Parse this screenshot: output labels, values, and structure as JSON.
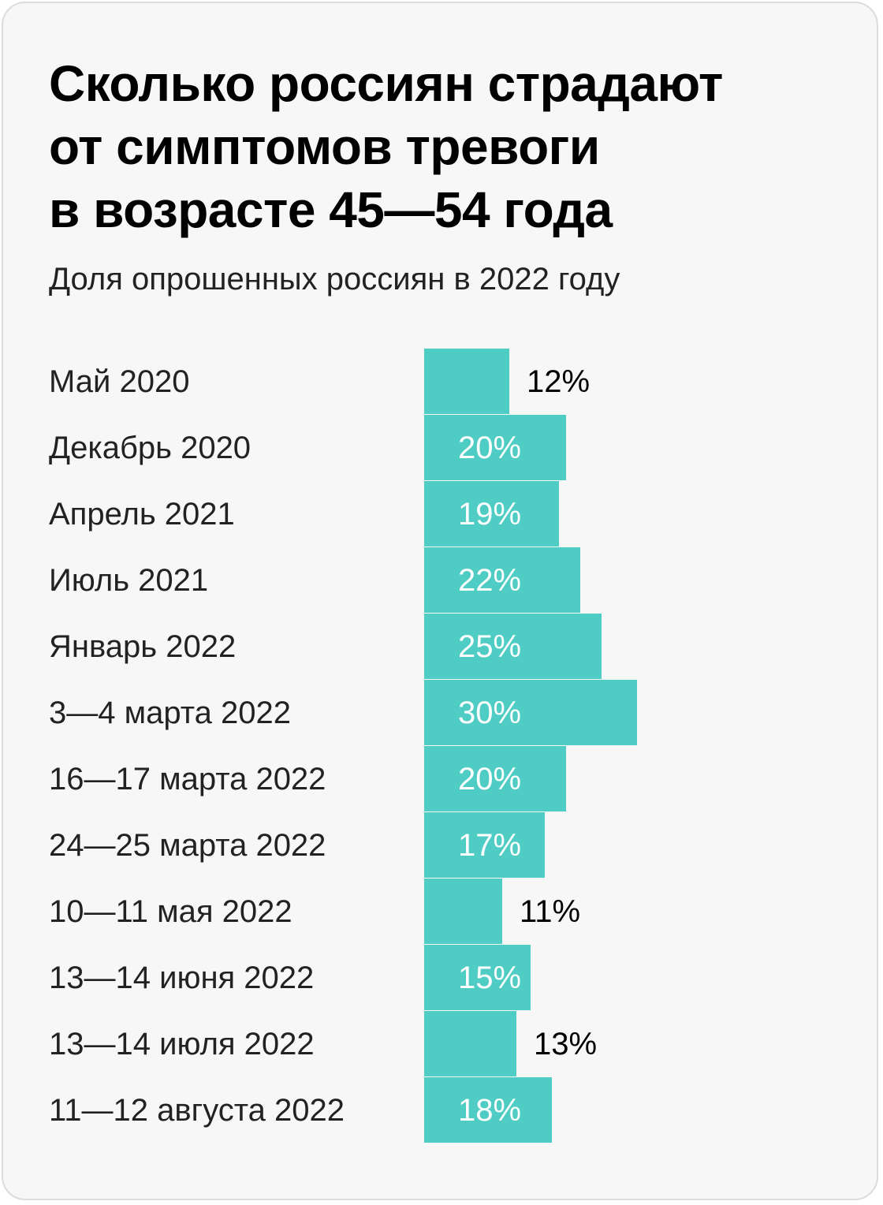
{
  "header": {
    "title_lines": [
      "Сколько россиян страдают",
      "от симптомов тревоги",
      "в возрасте 45—54 года"
    ],
    "subtitle": "Доля опрошенных россиян в 2022 году"
  },
  "colors": {
    "bar": "#4fcdc4",
    "label_inside": "#ffffff",
    "label_outside": "#000000",
    "category_text": "#222222",
    "background": "#f7f7f7"
  },
  "chart_data": {
    "type": "bar",
    "orientation": "horizontal",
    "title": "Сколько россиян страдают от симптомов тревоги в возрасте 45—54 года",
    "subtitle": "Доля опрошенных россиян в 2022 году",
    "categories": [
      "Май 2020",
      "Декабрь 2020",
      "Апрель 2021",
      "Июль 2021",
      "Январь 2022",
      "3—4 марта 2022",
      "16—17 марта 2022",
      "24—25 марта 2022",
      "10—11 мая 2022",
      "13—14 июня 2022",
      "13—14 июля 2022",
      "11—12 августа 2022"
    ],
    "values": [
      12,
      20,
      19,
      22,
      25,
      30,
      20,
      17,
      11,
      15,
      13,
      18
    ],
    "value_labels": [
      "12%",
      "20%",
      "19%",
      "22%",
      "25%",
      "30%",
      "20%",
      "17%",
      "11%",
      "15%",
      "13%",
      "18%"
    ],
    "unit": "%",
    "grid": false,
    "legend": "none"
  }
}
